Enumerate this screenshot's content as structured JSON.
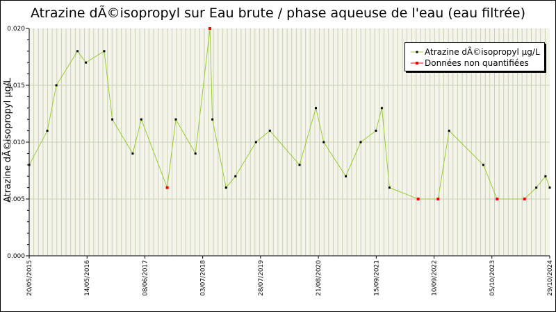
{
  "chart_data": {
    "type": "line",
    "title": "Atrazine dÃ©isopropyl sur Eau brute / phase aqueuse de l'eau (eau filtrée)",
    "ylabel": "Atrazine dÃ©isopropyl µg/L",
    "ylim": [
      0,
      0.02
    ],
    "y_ticks": [
      "0.000",
      "0.005",
      "0.010",
      "0.015",
      "0.020"
    ],
    "x_range": [
      "2015-05-20",
      "2024-10-29"
    ],
    "x_tick_labels": [
      "20/05/2015",
      "14/05/2016",
      "08/06/2017",
      "03/07/2018",
      "28/07/2019",
      "21/08/2020",
      "15/09/2021",
      "10/09/2022",
      "05/10/2023",
      "29/10/2024"
    ],
    "grid": true,
    "legend_position": "top-right",
    "series": [
      {
        "name": "Atrazine dÃ©isopropyl µg/L",
        "color": "#99cc33",
        "marker_color": "#000000",
        "points": [
          [
            "2015-05-20",
            0.008
          ],
          [
            "2015-09-17",
            0.011
          ],
          [
            "2015-11-16",
            0.015
          ],
          [
            "2016-04-04",
            0.018
          ],
          [
            "2016-05-30",
            0.017
          ],
          [
            "2016-09-28",
            0.018
          ],
          [
            "2016-11-21",
            0.012
          ],
          [
            "2017-04-05",
            0.009
          ],
          [
            "2017-06-01",
            0.012
          ],
          [
            "2017-11-20",
            0.006
          ],
          [
            "2018-01-16",
            0.012
          ],
          [
            "2018-05-26",
            0.009
          ],
          [
            "2018-08-30",
            0.02
          ],
          [
            "2018-09-15",
            0.012
          ],
          [
            "2018-12-15",
            0.006
          ],
          [
            "2019-02-15",
            0.007
          ],
          [
            "2019-07-01",
            0.01
          ],
          [
            "2019-10-01",
            0.011
          ],
          [
            "2020-04-15",
            0.008
          ],
          [
            "2020-08-01",
            0.013
          ],
          [
            "2020-09-22",
            0.01
          ],
          [
            "2021-02-15",
            0.007
          ],
          [
            "2021-05-25",
            0.01
          ],
          [
            "2021-09-03",
            0.011
          ],
          [
            "2021-10-12",
            0.013
          ],
          [
            "2021-12-02",
            0.006
          ],
          [
            "2022-06-10",
            0.005
          ],
          [
            "2022-10-20",
            0.005
          ],
          [
            "2023-01-01",
            0.011
          ],
          [
            "2023-08-16",
            0.008
          ],
          [
            "2023-11-15",
            0.005
          ],
          [
            "2024-05-15",
            0.005
          ],
          [
            "2024-08-01",
            0.006
          ],
          [
            "2024-10-01",
            0.007
          ],
          [
            "2024-10-29",
            0.006
          ]
        ]
      },
      {
        "name": "Données non quantifiées",
        "color": "#ff0000",
        "points": [
          [
            "2017-11-20",
            0.006
          ],
          [
            "2018-08-30",
            0.02
          ],
          [
            "2022-06-10",
            0.005
          ],
          [
            "2022-10-20",
            0.005
          ],
          [
            "2023-11-15",
            0.005
          ],
          [
            "2024-05-15",
            0.005
          ]
        ]
      }
    ]
  }
}
